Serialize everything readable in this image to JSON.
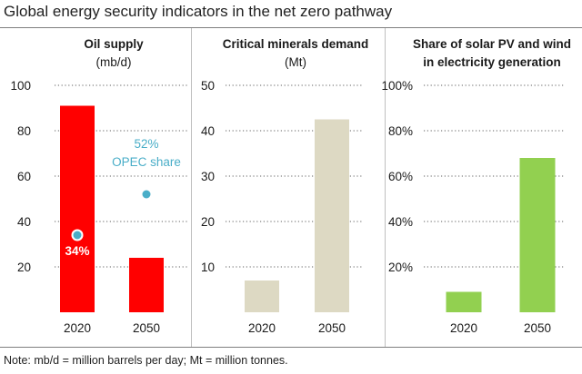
{
  "title": "Global energy security indicators in the net zero pathway",
  "note": "Note: mb/d = million barrels per day; Mt = million tonnes.",
  "chart_data": [
    {
      "type": "bar",
      "title_lines": [
        "Oil supply",
        "(mb/d)"
      ],
      "categories": [
        "2020",
        "2050"
      ],
      "values": [
        91,
        24
      ],
      "ylim": [
        0,
        100
      ],
      "yticks": [
        20,
        40,
        60,
        80,
        100
      ],
      "ytick_labels": [
        "20",
        "40",
        "60",
        "80",
        "100"
      ],
      "color": "#ff0000",
      "markers": [
        {
          "category": "2020",
          "y": 34,
          "label": "34%",
          "color": "#4aaec8"
        },
        {
          "category": "2050",
          "y": 52,
          "label": "52%",
          "color": "#4aaec8"
        }
      ],
      "annotation": "OPEC share"
    },
    {
      "type": "bar",
      "title_lines": [
        "Critical minerals demand",
        "(Mt)"
      ],
      "categories": [
        "2020",
        "2050"
      ],
      "values": [
        7,
        42.5
      ],
      "ylim": [
        0,
        50
      ],
      "yticks": [
        10,
        20,
        30,
        40,
        50
      ],
      "ytick_labels": [
        "10",
        "20",
        "30",
        "40",
        "50"
      ],
      "color": "#ddd9c3"
    },
    {
      "type": "bar",
      "title_lines": [
        "Share of solar PV and wind",
        "in electricity generation"
      ],
      "categories": [
        "2020",
        "2050"
      ],
      "values": [
        9,
        68
      ],
      "ylim": [
        0,
        100
      ],
      "yticks": [
        20,
        40,
        60,
        80,
        100
      ],
      "ytick_labels": [
        "20%",
        "40%",
        "60%",
        "80%",
        "100%"
      ],
      "color": "#92d050"
    }
  ]
}
